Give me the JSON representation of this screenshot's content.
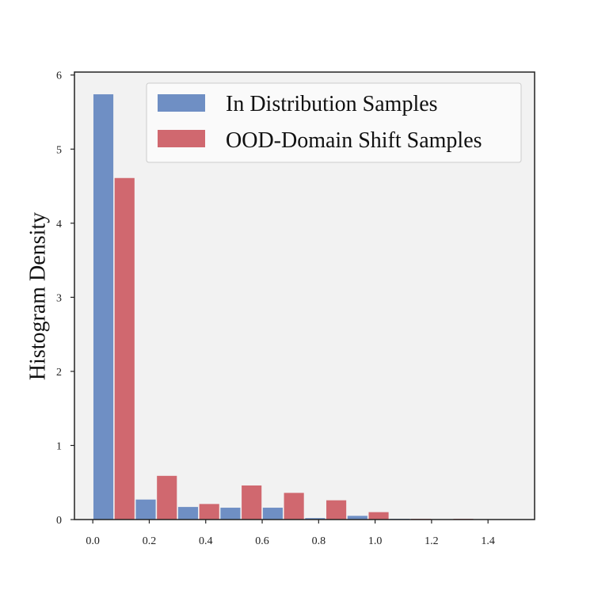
{
  "chart_data": {
    "type": "bar",
    "title": "",
    "xlabel": "",
    "ylabel": "Histogram Density",
    "xlim": [
      -0.065,
      1.565
    ],
    "ylim": [
      0,
      6.04
    ],
    "xticks": [
      0.0,
      0.2,
      0.4,
      0.6,
      0.8,
      1.0,
      1.2,
      1.4
    ],
    "xtick_labels": [
      "0.0",
      "0.2",
      "0.4",
      "0.6",
      "0.8",
      "1.0",
      "1.2",
      "1.4"
    ],
    "yticks": [
      0,
      1,
      2,
      3,
      4,
      5,
      6
    ],
    "ytick_labels": [
      "0",
      "1",
      "2",
      "3",
      "4",
      "5",
      "6"
    ],
    "grid": false,
    "legend_position": "top-right",
    "background": "#f2f2f2",
    "bin_width": 0.15,
    "bin_starts": [
      0.0,
      0.15,
      0.3,
      0.45,
      0.6,
      0.75,
      0.9,
      1.05,
      1.2,
      1.35
    ],
    "series": [
      {
        "name": "In Distribution Samples",
        "color": "#6f8fc4",
        "values": [
          5.74,
          0.27,
          0.17,
          0.16,
          0.16,
          0.02,
          0.05,
          0.01,
          0.0,
          0.0
        ]
      },
      {
        "name": "OOD-Domain Shift Samples",
        "color": "#d0686f",
        "values": [
          4.61,
          0.59,
          0.21,
          0.46,
          0.36,
          0.26,
          0.1,
          0.01,
          0.01,
          0.0
        ]
      }
    ]
  }
}
